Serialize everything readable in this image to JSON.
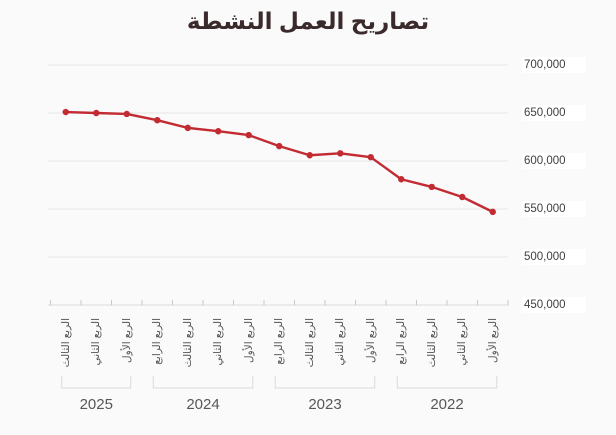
{
  "chart_data": {
    "type": "line",
    "title": "تصاريح العمل النشطة",
    "direction": "rtl",
    "x_order": "newest-quarter-on-left",
    "legend": false,
    "grid": "horizontal",
    "ylim": [
      450000,
      700000
    ],
    "yticks": [
      {
        "value": 700000,
        "label": "700,000"
      },
      {
        "value": 650000,
        "label": "650,000"
      },
      {
        "value": 600000,
        "label": "600,000"
      },
      {
        "value": 550000,
        "label": "550,000"
      },
      {
        "value": 500000,
        "label": "500,000"
      },
      {
        "value": 450000,
        "label": "450,000"
      }
    ],
    "groups": [
      {
        "year": "2025",
        "points": [
          {
            "quarter": "الربع الثالث",
            "value": 651000
          },
          {
            "quarter": "الربع الثاني",
            "value": 650000
          },
          {
            "quarter": "الربع الأول",
            "value": 649000
          }
        ]
      },
      {
        "year": "2024",
        "points": [
          {
            "quarter": "الربع الرابع",
            "value": 642500
          },
          {
            "quarter": "الربع الثالث",
            "value": 634500
          },
          {
            "quarter": "الربع الثاني",
            "value": 631000
          },
          {
            "quarter": "الربع الأول",
            "value": 627000
          }
        ]
      },
      {
        "year": "2023",
        "points": [
          {
            "quarter": "الربع الرابع",
            "value": 615500
          },
          {
            "quarter": "الربع الثالث",
            "value": 606000
          },
          {
            "quarter": "الربع الثاني",
            "value": 608000
          },
          {
            "quarter": "الربع الأول",
            "value": 604000
          }
        ]
      },
      {
        "year": "2022",
        "points": [
          {
            "quarter": "الربع الرابع",
            "value": 581000
          },
          {
            "quarter": "الربع الثالث",
            "value": 573000
          },
          {
            "quarter": "الربع الثاني",
            "value": 562500
          },
          {
            "quarter": "الربع الأول",
            "value": 547000
          }
        ]
      }
    ]
  },
  "colors": {
    "background": "#fafafa",
    "line": "#c32b33",
    "title": "#3a2a2b",
    "grid": "#e7e7e7",
    "axis": "#dcdcdc",
    "tick": "#c8c8c8",
    "bracket": "#d9d9d9",
    "x_label": "#555555",
    "y_label": "#3f3f3f",
    "year_label": "#575757"
  }
}
